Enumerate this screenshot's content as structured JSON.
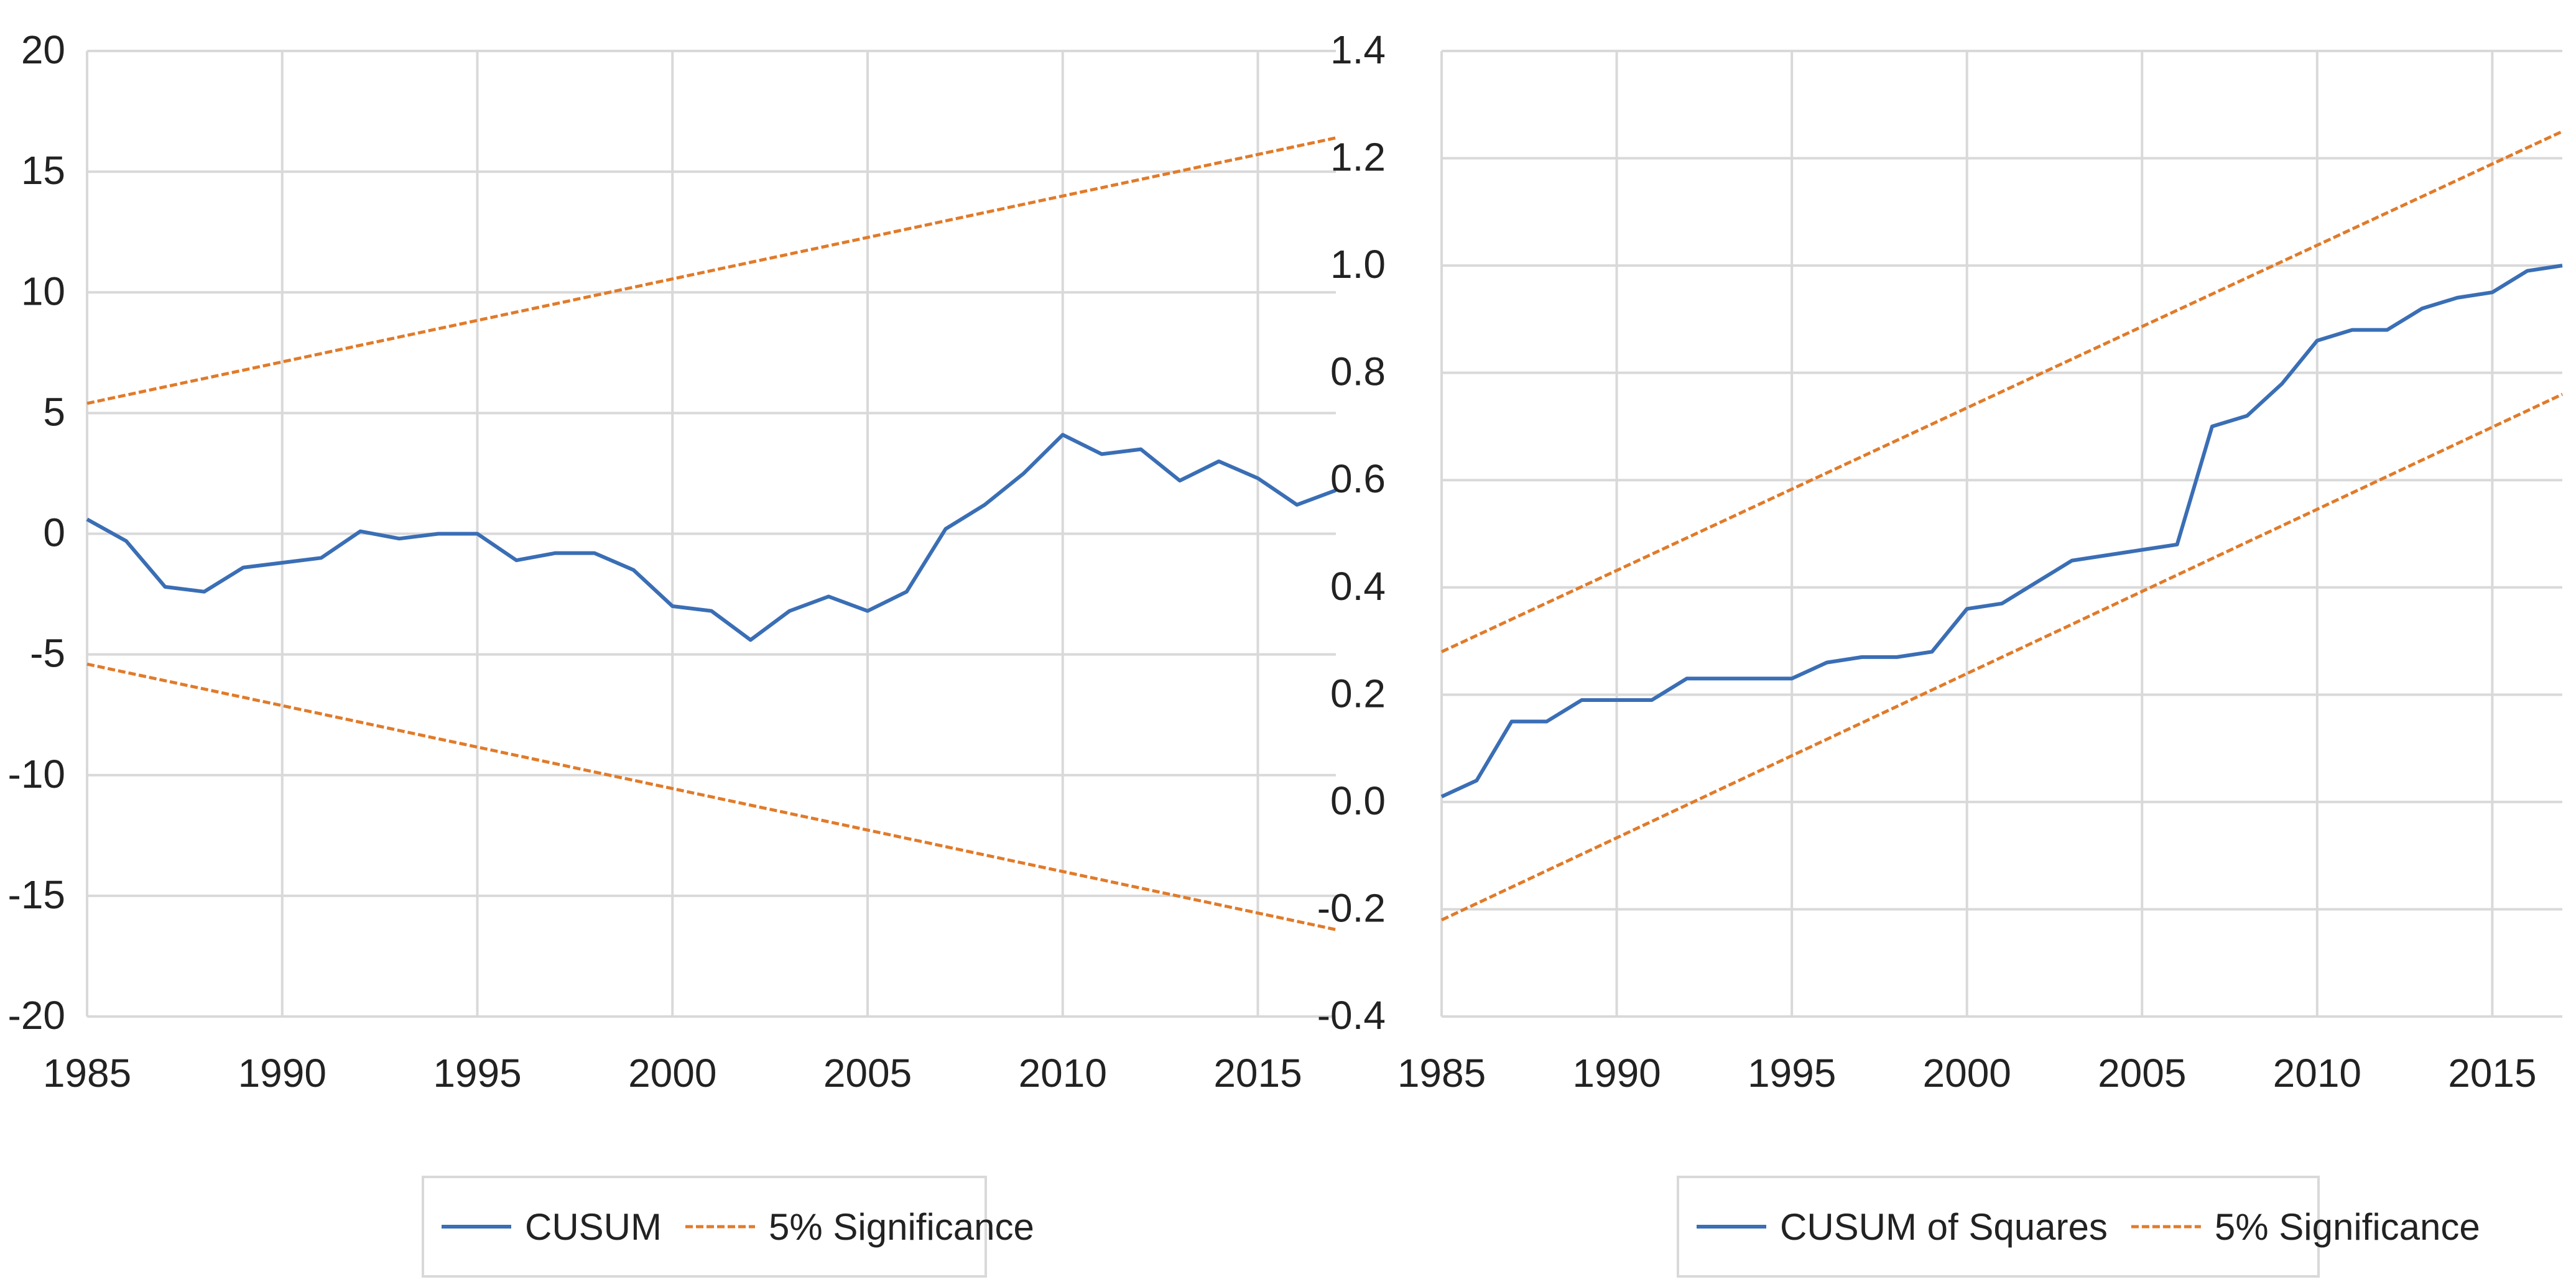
{
  "chart_data": [
    {
      "type": "line",
      "title": "",
      "xlabel": "",
      "ylabel": "",
      "xlim": [
        1985,
        2017
      ],
      "ylim": [
        -20,
        20
      ],
      "x_ticks": [
        1985,
        1990,
        1995,
        2000,
        2005,
        2010,
        2015
      ],
      "y_ticks": [
        20,
        15,
        10,
        5,
        0,
        -5,
        -10,
        -15,
        -20
      ],
      "grid": "on",
      "legend_position": "bottom",
      "series": [
        {
          "name": "CUSUM",
          "style": "solid",
          "color": "#3A6EB5",
          "x": [
            1985,
            1986,
            1987,
            1988,
            1989,
            1990,
            1991,
            1992,
            1993,
            1994,
            1995,
            1996,
            1997,
            1998,
            1999,
            2000,
            2001,
            2002,
            2003,
            2004,
            2005,
            2006,
            2007,
            2008,
            2009,
            2010,
            2011,
            2012,
            2013,
            2014,
            2015,
            2016,
            2017
          ],
          "values": [
            0.6,
            -0.3,
            -2.2,
            -2.4,
            -1.4,
            -1.2,
            -1.0,
            0.1,
            -0.2,
            0.0,
            0.0,
            -1.1,
            -0.8,
            -0.8,
            -1.5,
            -3.0,
            -3.2,
            -4.4,
            -3.2,
            -2.6,
            -3.2,
            -2.4,
            0.2,
            1.2,
            2.5,
            4.1,
            3.3,
            3.5,
            2.2,
            3.0,
            2.3,
            1.2,
            1.8
          ]
        },
        {
          "name": "5% Significance",
          "style": "dashed",
          "color": "#E07B2A",
          "x": [
            1985,
            2017
          ],
          "values": [
            5.4,
            16.4
          ]
        },
        {
          "name": "5% Significance (lower)",
          "style": "dashed",
          "color": "#E07B2A",
          "in_legend": false,
          "x": [
            1985,
            2017
          ],
          "values": [
            -5.4,
            -16.4
          ]
        }
      ],
      "legend": [
        "CUSUM",
        "5% Significance"
      ]
    },
    {
      "type": "line",
      "title": "",
      "xlabel": "",
      "ylabel": "",
      "xlim": [
        1985,
        2017
      ],
      "ylim": [
        -0.4,
        1.4
      ],
      "x_ticks": [
        1985,
        1990,
        1995,
        2000,
        2005,
        2010,
        2015
      ],
      "y_ticks": [
        1.4,
        1.2,
        1.0,
        0.8,
        0.6,
        0.4,
        0.2,
        0.0,
        -0.2,
        -0.4
      ],
      "y_tick_labels": [
        "1.4",
        "1.2",
        "1.0",
        "0.8",
        "0.6",
        "0.4",
        "0.2",
        "0.0",
        "-0.2",
        "-0.4"
      ],
      "grid": "on",
      "legend_position": "bottom",
      "series": [
        {
          "name": "CUSUM of Squares",
          "style": "solid",
          "color": "#3A6EB5",
          "x": [
            1985,
            1986,
            1987,
            1988,
            1989,
            1990,
            1991,
            1992,
            1993,
            1994,
            1995,
            1996,
            1997,
            1998,
            1999,
            2000,
            2001,
            2002,
            2003,
            2004,
            2005,
            2006,
            2007,
            2008,
            2009,
            2010,
            2011,
            2012,
            2013,
            2014,
            2015,
            2016,
            2017
          ],
          "values": [
            0.01,
            0.04,
            0.15,
            0.15,
            0.19,
            0.19,
            0.19,
            0.23,
            0.23,
            0.23,
            0.23,
            0.26,
            0.27,
            0.27,
            0.28,
            0.36,
            0.37,
            0.41,
            0.45,
            0.46,
            0.47,
            0.48,
            0.7,
            0.72,
            0.78,
            0.86,
            0.88,
            0.88,
            0.92,
            0.94,
            0.95,
            0.99,
            1.0
          ]
        },
        {
          "name": "5% Significance",
          "style": "dashed",
          "color": "#E07B2A",
          "x": [
            1985,
            2017
          ],
          "values": [
            0.28,
            1.25
          ]
        },
        {
          "name": "5% Significance (lower)",
          "style": "dashed",
          "color": "#E07B2A",
          "in_legend": false,
          "x": [
            1985,
            2017
          ],
          "values": [
            -0.22,
            0.76
          ]
        }
      ],
      "legend": [
        "CUSUM of Squares",
        "5% Significance"
      ]
    }
  ]
}
